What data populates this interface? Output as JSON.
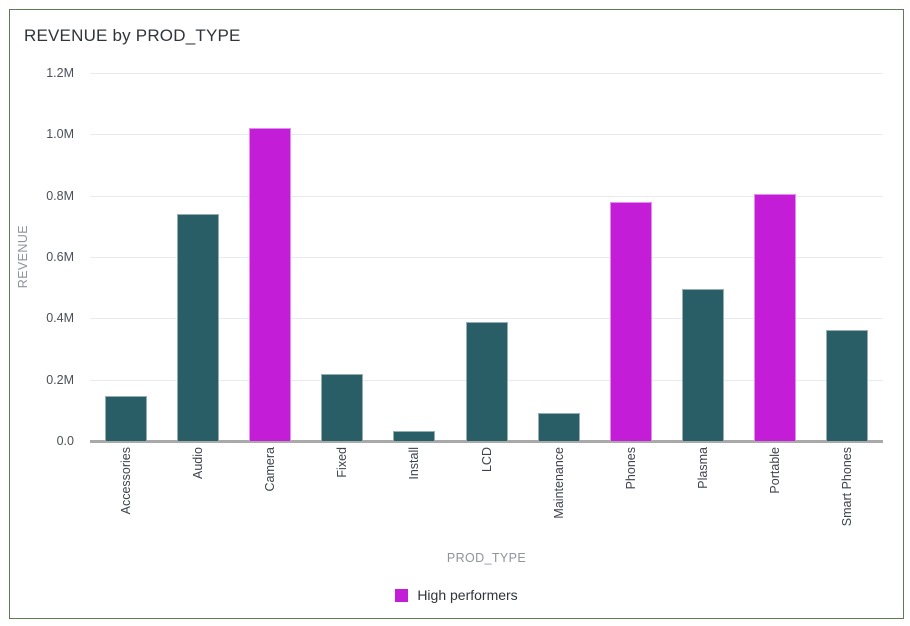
{
  "chart_data": {
    "type": "bar",
    "title": "REVENUE by PROD_TYPE",
    "xlabel": "PROD_TYPE",
    "ylabel": "REVENUE",
    "units": "M",
    "categories": [
      "Accessories",
      "Audio",
      "Camera",
      "Fixed",
      "Install",
      "LCD",
      "Maintenance",
      "Phones",
      "Plasma",
      "Portable",
      "Smart Phones"
    ],
    "values": [
      0.148,
      0.74,
      1.02,
      0.218,
      0.033,
      0.388,
      0.091,
      0.778,
      0.497,
      0.807,
      0.363
    ],
    "high_performers": [
      "Camera",
      "Phones",
      "Portable"
    ],
    "ylim": [
      0,
      1.2
    ],
    "y_ticks": [
      {
        "v": 0.0,
        "label": "0.0"
      },
      {
        "v": 0.2,
        "label": "0.2M"
      },
      {
        "v": 0.4,
        "label": "0.4M"
      },
      {
        "v": 0.6,
        "label": "0.6M"
      },
      {
        "v": 0.8,
        "label": "0.8M"
      },
      {
        "v": 1.0,
        "label": "1.0M"
      },
      {
        "v": 1.2,
        "label": "1.2M"
      }
    ],
    "grid": true,
    "legend_position": "bottom-center",
    "legend": [
      {
        "label": "High performers",
        "color": "#c41dd8"
      }
    ],
    "colors": {
      "default": "#295e67",
      "highlight": "#c41dd8"
    }
  }
}
